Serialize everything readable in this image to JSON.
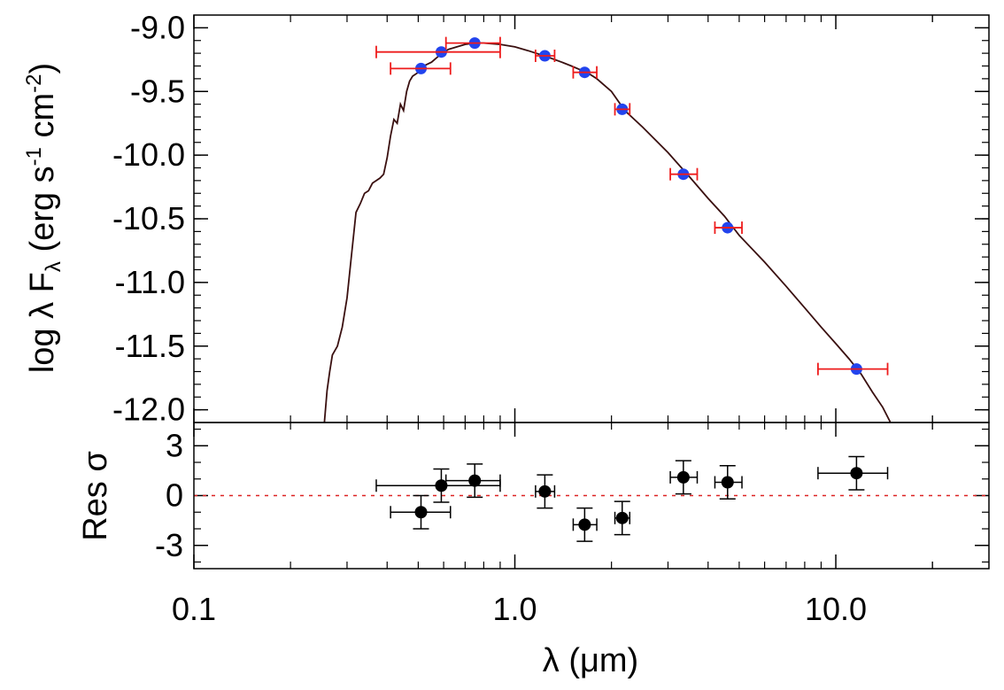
{
  "chart_data": [
    {
      "type": "line",
      "panel": "sed",
      "x_scale": "log",
      "xlim": [
        0.1,
        30.0
      ],
      "ylim": [
        -12.1,
        -8.9
      ],
      "ylabel": {
        "prefix": "log λ F",
        "subscript": "λ",
        "open": " (erg s",
        "exp1": "-1",
        "mid": " cm",
        "exp2": "-2",
        "close": ")"
      },
      "yticks": [
        -9.0,
        -9.5,
        -10.0,
        -10.5,
        -11.0,
        -11.5,
        -12.0
      ],
      "ytick_labels": [
        "-9.0",
        "-9.5",
        "-10.0",
        "-10.5",
        "-11.0",
        "-11.5",
        "-12.0"
      ],
      "model_color": "#3a1010",
      "marker_color": "#2244ee",
      "errorbar_color": "#ee1c1c",
      "model_sed": [
        [
          0.255,
          -12.1
        ],
        [
          0.26,
          -11.85
        ],
        [
          0.265,
          -11.7
        ],
        [
          0.27,
          -11.57
        ],
        [
          0.28,
          -11.5
        ],
        [
          0.29,
          -11.35
        ],
        [
          0.3,
          -11.12
        ],
        [
          0.31,
          -10.78
        ],
        [
          0.32,
          -10.45
        ],
        [
          0.33,
          -10.38
        ],
        [
          0.34,
          -10.3
        ],
        [
          0.35,
          -10.28
        ],
        [
          0.36,
          -10.22
        ],
        [
          0.37,
          -10.2
        ],
        [
          0.38,
          -10.18
        ],
        [
          0.39,
          -10.15
        ],
        [
          0.4,
          -10.02
        ],
        [
          0.41,
          -9.85
        ],
        [
          0.42,
          -9.72
        ],
        [
          0.43,
          -9.75
        ],
        [
          0.44,
          -9.6
        ],
        [
          0.45,
          -9.65
        ],
        [
          0.46,
          -9.5
        ],
        [
          0.47,
          -9.42
        ],
        [
          0.48,
          -9.38
        ],
        [
          0.5,
          -9.35
        ],
        [
          0.52,
          -9.3
        ],
        [
          0.55,
          -9.27
        ],
        [
          0.58,
          -9.22
        ],
        [
          0.62,
          -9.17
        ],
        [
          0.66,
          -9.15
        ],
        [
          0.7,
          -9.13
        ],
        [
          0.75,
          -9.12
        ],
        [
          0.8,
          -9.12
        ],
        [
          0.9,
          -9.13
        ],
        [
          1.0,
          -9.15
        ],
        [
          1.1,
          -9.18
        ],
        [
          1.2,
          -9.21
        ],
        [
          1.3,
          -9.24
        ],
        [
          1.4,
          -9.27
        ],
        [
          1.5,
          -9.3
        ],
        [
          1.6,
          -9.33
        ],
        [
          1.7,
          -9.36
        ],
        [
          1.8,
          -9.4
        ],
        [
          2.0,
          -9.5
        ],
        [
          2.2,
          -9.65
        ],
        [
          2.5,
          -9.78
        ],
        [
          3.0,
          -9.98
        ],
        [
          3.5,
          -10.17
        ],
        [
          4.0,
          -10.34
        ],
        [
          4.5,
          -10.48
        ],
        [
          5.0,
          -10.63
        ],
        [
          6.0,
          -10.84
        ],
        [
          7.0,
          -11.03
        ],
        [
          8.0,
          -11.2
        ],
        [
          9.0,
          -11.35
        ],
        [
          10.0,
          -11.48
        ],
        [
          11.0,
          -11.6
        ],
        [
          12.0,
          -11.72
        ],
        [
          13.0,
          -11.86
        ],
        [
          14.0,
          -11.98
        ],
        [
          14.8,
          -12.1
        ]
      ],
      "photometry": [
        {
          "x": 0.51,
          "y": -9.32,
          "xerr_low": 0.41,
          "xerr_high": 0.63,
          "yerr": 0.02
        },
        {
          "x": 0.59,
          "y": -9.19,
          "xerr_low": 0.37,
          "xerr_high": 0.9,
          "yerr": 0.02
        },
        {
          "x": 0.75,
          "y": -9.12,
          "xerr_low": 0.61,
          "xerr_high": 0.9,
          "yerr": 0.02
        },
        {
          "x": 1.24,
          "y": -9.22,
          "xerr_low": 1.16,
          "xerr_high": 1.33,
          "yerr": 0.02
        },
        {
          "x": 1.65,
          "y": -9.35,
          "xerr_low": 1.52,
          "xerr_high": 1.8,
          "yerr": 0.02
        },
        {
          "x": 2.16,
          "y": -9.64,
          "xerr_low": 2.05,
          "xerr_high": 2.28,
          "yerr": 0.02
        },
        {
          "x": 3.35,
          "y": -10.15,
          "xerr_low": 3.05,
          "xerr_high": 3.7,
          "yerr": 0.02
        },
        {
          "x": 4.6,
          "y": -10.57,
          "xerr_low": 4.2,
          "xerr_high": 5.1,
          "yerr": 0.02
        },
        {
          "x": 11.6,
          "y": -11.68,
          "xerr_low": 8.8,
          "xerr_high": 14.5,
          "yerr": 0.02
        }
      ]
    },
    {
      "type": "scatter",
      "panel": "residuals",
      "x_scale": "log",
      "xlim": [
        0.1,
        30.0
      ],
      "ylim": [
        -4.4,
        4.4
      ],
      "xlabel": "λ (μm)",
      "ylabel": "Res σ",
      "xticks": [
        0.1,
        1.0,
        10.0
      ],
      "xtick_labels": [
        "0.1",
        "1.0",
        "10.0"
      ],
      "yticks": [
        3,
        0,
        -3
      ],
      "ytick_labels": [
        "3",
        "0",
        "-3"
      ],
      "reference_line": 0,
      "reference_color": "#dd2222",
      "marker_color": "#000000",
      "points": [
        {
          "x": 0.51,
          "y": -1.0,
          "xerr_low": 0.41,
          "xerr_high": 0.63,
          "yerr": 1.0
        },
        {
          "x": 0.59,
          "y": 0.6,
          "xerr_low": 0.37,
          "xerr_high": 0.9,
          "yerr": 1.0
        },
        {
          "x": 0.75,
          "y": 0.9,
          "xerr_low": 0.61,
          "xerr_high": 0.9,
          "yerr": 1.0
        },
        {
          "x": 1.24,
          "y": 0.25,
          "xerr_low": 1.16,
          "xerr_high": 1.33,
          "yerr": 1.0
        },
        {
          "x": 1.65,
          "y": -1.75,
          "xerr_low": 1.52,
          "xerr_high": 1.8,
          "yerr": 1.0
        },
        {
          "x": 2.16,
          "y": -1.35,
          "xerr_low": 2.05,
          "xerr_high": 2.28,
          "yerr": 1.0
        },
        {
          "x": 3.35,
          "y": 1.1,
          "xerr_low": 3.05,
          "xerr_high": 3.7,
          "yerr": 1.0
        },
        {
          "x": 4.6,
          "y": 0.8,
          "xerr_low": 4.2,
          "xerr_high": 5.1,
          "yerr": 1.0
        },
        {
          "x": 11.6,
          "y": 1.35,
          "xerr_low": 8.8,
          "xerr_high": 14.5,
          "yerr": 1.0
        }
      ]
    }
  ]
}
